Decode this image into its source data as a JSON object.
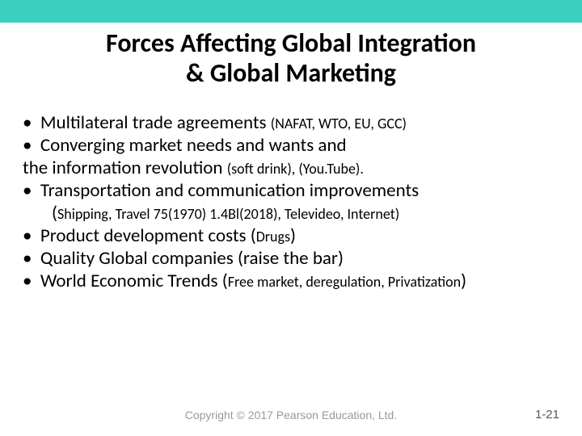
{
  "colors": {
    "topbar": "#3cd0c0",
    "background": "#ffffff",
    "text": "#000000",
    "footer_text": "#9a9a9a",
    "pagenum_text": "#595959"
  },
  "title": {
    "line1": "Forces Affecting Global Integration",
    "line2": "& Global Marketing"
  },
  "bullets": {
    "b1_main": "Multilateral trade agreements ",
    "b1_small": "(NAFAT, WTO, EU, GCC)",
    "b2_main": "Converging market needs and wants and",
    "b2_cont": "the information revolution ",
    "b2_small": "(soft drink), (You.Tube).",
    "b3_main": "Transportation and  communication improvements",
    "b3_sub_open": "(",
    "b3_sub_small": "Shipping, Travel 75(1970) 1.4Bl(2018), Televideo, Internet)",
    "b4_main": "Product development costs (",
    "b4_small": "Drugs",
    "b4_close": ")",
    "b5_main": "Quality  Global companies (raise the bar)",
    "b6_main": "World Economic Trends (",
    "b6_small": "Free market, deregulation, Privatization",
    "b6_close": ")"
  },
  "footer": {
    "copyright": "Copyright © 2017 Pearson Education, Ltd.",
    "pagenum": "1-21"
  }
}
